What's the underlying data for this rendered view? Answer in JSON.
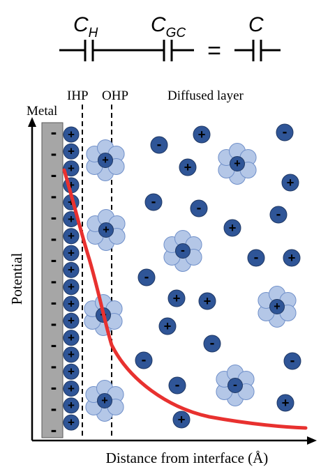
{
  "circuit": {
    "labels": [
      {
        "main": "C",
        "sub": "H"
      },
      {
        "main": "C",
        "sub": "GC"
      },
      {
        "main": "C",
        "sub": ""
      }
    ],
    "equals": "="
  },
  "layers": {
    "ihp": "IHP",
    "ohp": "OHP",
    "diffused": "Diffused layer",
    "metal": "Metal"
  },
  "axes": {
    "ylabel": "Potential",
    "xlabel": "Distance from interface (Å)"
  },
  "symbols": {
    "plus": "+",
    "minus": "-"
  },
  "colors": {
    "metal": "#a6a6a6",
    "ion_dark": "#2f5597",
    "ion_medium": "#4472c4",
    "solvent": "#b4c7e7",
    "solvent_stroke": "#6f8fc9",
    "curve": "#e8312f"
  }
}
